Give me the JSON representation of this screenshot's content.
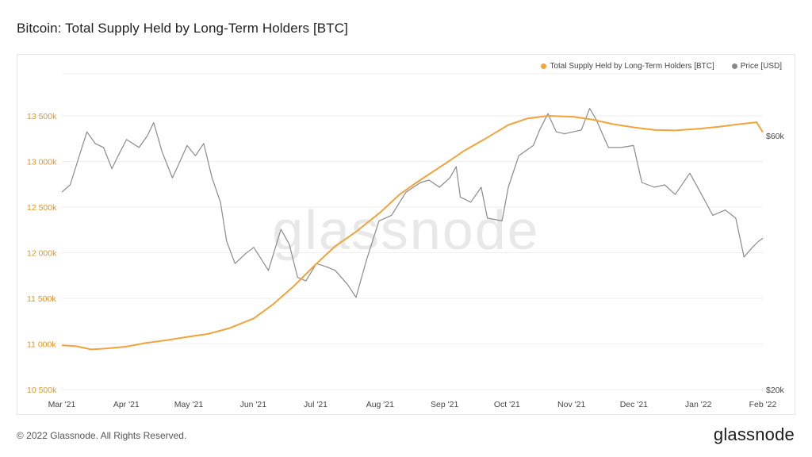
{
  "title": "Bitcoin: Total Supply Held by Long-Term Holders [BTC]",
  "watermark": "glassnode",
  "footer": {
    "copyright": "© 2022 Glassnode. All Rights Reserved.",
    "logo": "glassnode"
  },
  "colors": {
    "lth_series": "#f2a33c",
    "price_series": "#8a8a8a",
    "left_axis_text": "#e0962e",
    "grid": "#eeeeee"
  },
  "chart_data": {
    "type": "line",
    "title": "Bitcoin: Total Supply Held by Long-Term Holders [BTC]",
    "legend_position": "top-right",
    "grid": true,
    "x_ticks": [
      "Mar '21",
      "Apr '21",
      "May '21",
      "Jun '21",
      "Jul '21",
      "Aug '21",
      "Sep '21",
      "Oct '21",
      "Nov '21",
      "Dec '21",
      "Jan '22",
      "Feb '22"
    ],
    "y_left": {
      "ticks": [
        "10 500k",
        "11 000k",
        "11 500k",
        "12 000k",
        "12 500k",
        "13 000k",
        "13 500k"
      ],
      "tick_values": [
        10500,
        11000,
        11500,
        12000,
        12500,
        13000,
        13500
      ],
      "range": [
        10500,
        13600
      ],
      "unit": "k BTC"
    },
    "y_right": {
      "ticks": [
        "$20k",
        "$60k"
      ],
      "tick_values": [
        20000,
        60000
      ],
      "scale": "log",
      "range": [
        20000,
        80000
      ]
    },
    "series": [
      {
        "name": "Total Supply Held by Long-Term Holders [BTC]",
        "axis": "left",
        "color": "#f2a33c",
        "points": [
          [
            "2021-03-01",
            10985
          ],
          [
            "2021-03-08",
            10975
          ],
          [
            "2021-03-15",
            10940
          ],
          [
            "2021-03-22",
            10950
          ],
          [
            "2021-04-01",
            10970
          ],
          [
            "2021-04-10",
            11010
          ],
          [
            "2021-04-20",
            11040
          ],
          [
            "2021-05-01",
            11080
          ],
          [
            "2021-05-10",
            11110
          ],
          [
            "2021-05-20",
            11170
          ],
          [
            "2021-06-01",
            11280
          ],
          [
            "2021-06-10",
            11430
          ],
          [
            "2021-06-20",
            11630
          ],
          [
            "2021-07-01",
            11880
          ],
          [
            "2021-07-10",
            12070
          ],
          [
            "2021-07-20",
            12230
          ],
          [
            "2021-08-01",
            12450
          ],
          [
            "2021-08-10",
            12640
          ],
          [
            "2021-08-20",
            12800
          ],
          [
            "2021-09-01",
            12980
          ],
          [
            "2021-09-10",
            13120
          ],
          [
            "2021-09-20",
            13250
          ],
          [
            "2021-10-01",
            13400
          ],
          [
            "2021-10-10",
            13470
          ],
          [
            "2021-10-20",
            13500
          ],
          [
            "2021-11-01",
            13490
          ],
          [
            "2021-11-10",
            13460
          ],
          [
            "2021-11-20",
            13410
          ],
          [
            "2021-12-01",
            13370
          ],
          [
            "2021-12-10",
            13345
          ],
          [
            "2021-12-20",
            13340
          ],
          [
            "2022-01-01",
            13360
          ],
          [
            "2022-01-10",
            13380
          ],
          [
            "2022-01-20",
            13410
          ],
          [
            "2022-01-28",
            13430
          ],
          [
            "2022-01-31",
            13320
          ]
        ]
      },
      {
        "name": "Price [USD]",
        "axis": "right",
        "color": "#8a8a8a",
        "points": [
          [
            "2021-03-01",
            47000
          ],
          [
            "2021-03-05",
            48500
          ],
          [
            "2021-03-10",
            56000
          ],
          [
            "2021-03-13",
            61000
          ],
          [
            "2021-03-17",
            58000
          ],
          [
            "2021-03-21",
            57000
          ],
          [
            "2021-03-25",
            52000
          ],
          [
            "2021-03-28",
            55000
          ],
          [
            "2021-04-01",
            59000
          ],
          [
            "2021-04-07",
            57000
          ],
          [
            "2021-04-11",
            60000
          ],
          [
            "2021-04-14",
            63500
          ],
          [
            "2021-04-18",
            56000
          ],
          [
            "2021-04-23",
            50000
          ],
          [
            "2021-04-26",
            53000
          ],
          [
            "2021-04-30",
            57500
          ],
          [
            "2021-05-04",
            55000
          ],
          [
            "2021-05-08",
            58000
          ],
          [
            "2021-05-12",
            50000
          ],
          [
            "2021-05-16",
            45000
          ],
          [
            "2021-05-19",
            38000
          ],
          [
            "2021-05-23",
            34500
          ],
          [
            "2021-05-28",
            36000
          ],
          [
            "2021-06-01",
            37000
          ],
          [
            "2021-06-08",
            33500
          ],
          [
            "2021-06-14",
            40000
          ],
          [
            "2021-06-18",
            37500
          ],
          [
            "2021-06-22",
            32500
          ],
          [
            "2021-06-26",
            32000
          ],
          [
            "2021-07-01",
            34500
          ],
          [
            "2021-07-06",
            34000
          ],
          [
            "2021-07-10",
            33500
          ],
          [
            "2021-07-16",
            31500
          ],
          [
            "2021-07-20",
            29800
          ],
          [
            "2021-07-25",
            35000
          ],
          [
            "2021-07-31",
            41500
          ],
          [
            "2021-08-06",
            42500
          ],
          [
            "2021-08-13",
            47000
          ],
          [
            "2021-08-20",
            49000
          ],
          [
            "2021-08-24",
            49500
          ],
          [
            "2021-08-29",
            48000
          ],
          [
            "2021-09-03",
            50000
          ],
          [
            "2021-09-06",
            52500
          ],
          [
            "2021-09-08",
            46000
          ],
          [
            "2021-09-13",
            45000
          ],
          [
            "2021-09-18",
            48000
          ],
          [
            "2021-09-21",
            42000
          ],
          [
            "2021-09-28",
            41500
          ],
          [
            "2021-10-01",
            48000
          ],
          [
            "2021-10-06",
            55000
          ],
          [
            "2021-10-13",
            57500
          ],
          [
            "2021-10-16",
            61500
          ],
          [
            "2021-10-20",
            66000
          ],
          [
            "2021-10-24",
            61000
          ],
          [
            "2021-10-28",
            60500
          ],
          [
            "2021-11-01",
            61000
          ],
          [
            "2021-11-05",
            61500
          ],
          [
            "2021-11-09",
            67500
          ],
          [
            "2021-11-12",
            64500
          ],
          [
            "2021-11-18",
            57000
          ],
          [
            "2021-11-24",
            57000
          ],
          [
            "2021-11-30",
            57500
          ],
          [
            "2021-12-04",
            49000
          ],
          [
            "2021-12-10",
            48000
          ],
          [
            "2021-12-15",
            48500
          ],
          [
            "2021-12-20",
            46500
          ],
          [
            "2021-12-27",
            51000
          ],
          [
            "2022-01-01",
            47000
          ],
          [
            "2022-01-07",
            42500
          ],
          [
            "2022-01-13",
            43500
          ],
          [
            "2022-01-18",
            42000
          ],
          [
            "2022-01-22",
            35500
          ],
          [
            "2022-01-26",
            37000
          ],
          [
            "2022-01-29",
            38000
          ],
          [
            "2022-01-31",
            38500
          ]
        ]
      }
    ]
  }
}
